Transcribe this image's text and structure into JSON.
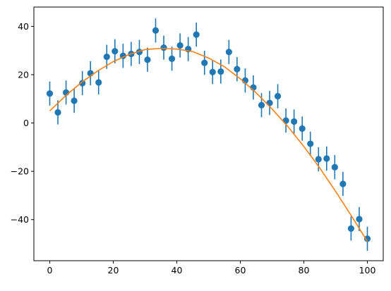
{
  "chart_data": {
    "type": "scatter",
    "title": "",
    "xlabel": "",
    "ylabel": "",
    "xlim": [
      -5,
      105
    ],
    "ylim": [
      -57,
      48
    ],
    "grid": false,
    "xticks": [
      0,
      20,
      40,
      60,
      80,
      100
    ],
    "yticks": [
      -40,
      -20,
      0,
      20,
      40
    ],
    "series": [
      {
        "kind": "errorbar",
        "color": "#1f77b4",
        "x": [
          0,
          2.56,
          5.13,
          7.69,
          10.26,
          12.82,
          15.38,
          17.95,
          20.51,
          23.08,
          25.64,
          28.21,
          30.77,
          33.33,
          35.9,
          38.46,
          41.03,
          43.59,
          46.15,
          48.72,
          51.28,
          53.85,
          56.41,
          58.97,
          61.54,
          64.1,
          66.67,
          69.23,
          71.79,
          74.36,
          76.92,
          79.49,
          82.05,
          84.62,
          87.18,
          89.74,
          92.31,
          94.87,
          97.44,
          100
        ],
        "y": [
          12.2,
          4.4,
          12.6,
          9.2,
          16.5,
          20.6,
          16.8,
          27.4,
          29.7,
          27.8,
          28.6,
          29.4,
          26.2,
          38.3,
          31.2,
          26.6,
          32.1,
          30.6,
          36.6,
          24.9,
          21.1,
          21.3,
          29.4,
          22.3,
          17.6,
          14.7,
          7.4,
          8.3,
          11.1,
          1.0,
          0.6,
          -2.3,
          -8.6,
          -15.0,
          -14.7,
          -18.3,
          -25.2,
          -43.7,
          -39.8,
          -47.9
        ],
        "yerr": 5
      },
      {
        "kind": "line",
        "color": "#ff7f0e",
        "x": [
          0,
          5,
          10,
          15,
          20,
          25,
          30,
          35,
          40,
          45,
          50,
          55,
          60,
          65,
          70,
          75,
          80,
          85,
          90,
          95,
          100
        ],
        "y": [
          5.0,
          11.3,
          16.8,
          21.5,
          25.4,
          28.4,
          30.4,
          30.9,
          30.6,
          29.6,
          26.9,
          23.3,
          18.3,
          12.5,
          5.8,
          -1.5,
          -9.7,
          -18.6,
          -28.3,
          -38.5,
          -49.0
        ]
      }
    ]
  }
}
